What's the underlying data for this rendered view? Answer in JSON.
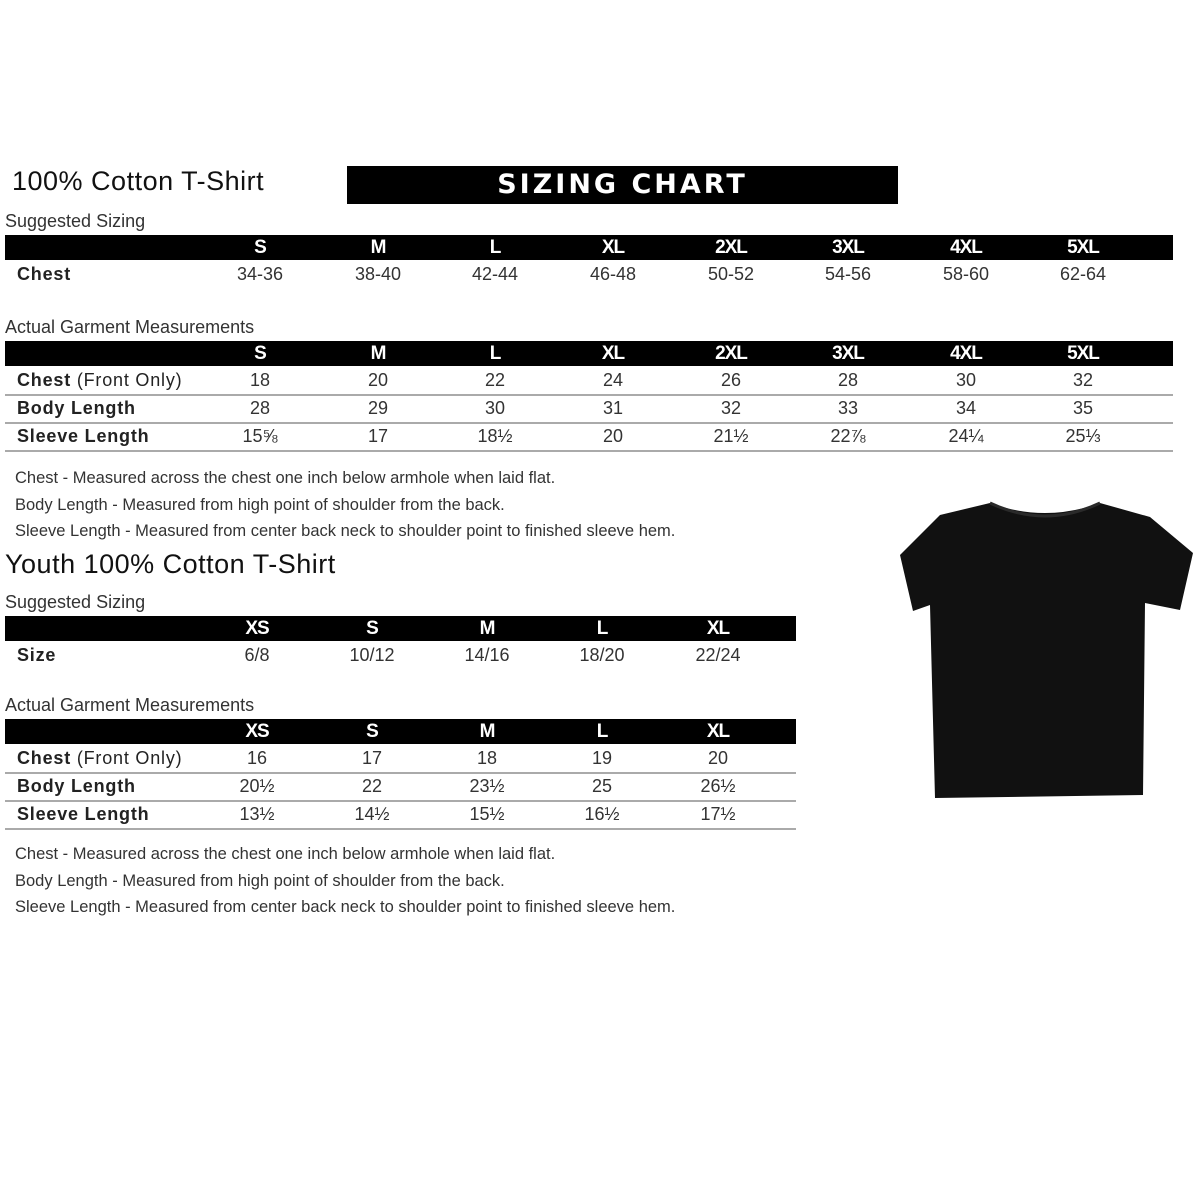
{
  "adult": {
    "title": "100% Cotton T-Shirt",
    "banner": "SIZING CHART",
    "suggested_label": "Suggested Sizing",
    "sizes": [
      "S",
      "M",
      "L",
      "XL",
      "2XL",
      "3XL",
      "4XL",
      "5XL"
    ],
    "suggested_rows": [
      {
        "label": "Chest",
        "values": [
          "34-36",
          "38-40",
          "42-44",
          "46-48",
          "50-52",
          "54-56",
          "58-60",
          "62-64"
        ]
      }
    ],
    "actual_label": "Actual Garment Measurements",
    "actual_rows": [
      {
        "label": "Chest",
        "suffix": " (Front Only)",
        "values": [
          "18",
          "20",
          "22",
          "24",
          "26",
          "28",
          "30",
          "32"
        ]
      },
      {
        "label": "Body Length",
        "suffix": "",
        "values": [
          "28",
          "29",
          "30",
          "31",
          "32",
          "33",
          "34",
          "35"
        ]
      },
      {
        "label": "Sleeve Length",
        "suffix": "",
        "values": [
          "15⅝",
          "17",
          "18½",
          "20",
          "21½",
          "22⅞",
          "24¼",
          "25⅓"
        ]
      }
    ],
    "notes": [
      "Chest - Measured across the chest one inch below armhole when laid flat.",
      "Body Length - Measured from high point of shoulder from the back.",
      "Sleeve Length - Measured from center back neck to shoulder point to finished sleeve hem."
    ]
  },
  "youth": {
    "title": "Youth 100% Cotton T-Shirt",
    "suggested_label": "Suggested Sizing",
    "sizes": [
      "XS",
      "S",
      "M",
      "L",
      "XL"
    ],
    "suggested_rows": [
      {
        "label": "Size",
        "values": [
          "6/8",
          "10/12",
          "14/16",
          "18/20",
          "22/24"
        ]
      }
    ],
    "actual_label": "Actual Garment Measurements",
    "actual_rows": [
      {
        "label": "Chest",
        "suffix": " (Front Only)",
        "values": [
          "16",
          "17",
          "18",
          "19",
          "20"
        ]
      },
      {
        "label": "Body Length",
        "suffix": "",
        "values": [
          "20½",
          "22",
          "23½",
          "25",
          "26½"
        ]
      },
      {
        "label": "Sleeve Length",
        "suffix": "",
        "values": [
          "13½",
          "14½",
          "15½",
          "16½",
          "17½"
        ]
      }
    ],
    "notes": [
      "Chest - Measured across the chest one inch below armhole when laid flat.",
      "Body Length - Measured from high point of shoulder from the back.",
      "Sleeve Length - Measured from center back neck to shoulder point to finished sleeve hem."
    ]
  },
  "image": {
    "icon": "black-tshirt-icon",
    "color": "#111111"
  }
}
